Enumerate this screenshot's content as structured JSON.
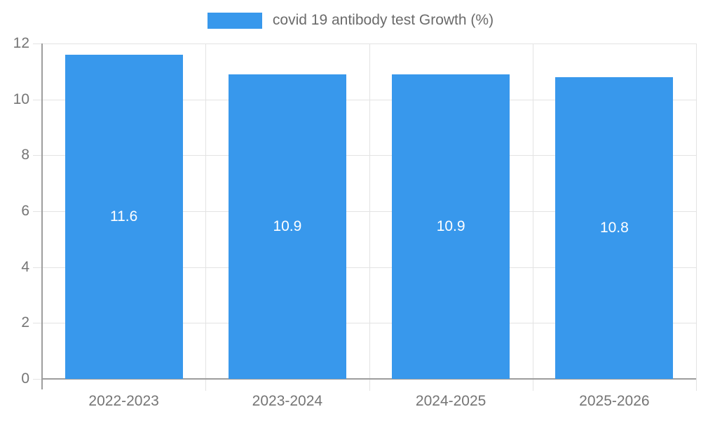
{
  "chart_data": {
    "type": "bar",
    "title": "covid 19 antibody test Growth (%)",
    "categories": [
      "2022-2023",
      "2023-2024",
      "2024-2025",
      "2025-2026"
    ],
    "values": [
      11.6,
      10.9,
      10.9,
      10.8
    ],
    "value_labels": [
      "11.6",
      "10.9",
      "10.9",
      "10.8"
    ],
    "xlabel": "",
    "ylabel": "",
    "ylim": [
      0,
      12
    ],
    "yticks": [
      0,
      2,
      4,
      6,
      8,
      10,
      12
    ],
    "grid": true,
    "legend_position": "top",
    "colors": {
      "bar": "#3898EC",
      "value_label": "#ffffff",
      "gridline": "#e3e3e3",
      "axis": "#9d9d9d",
      "tick_text": "#757575",
      "legend_text": "#6b6b6b"
    }
  }
}
